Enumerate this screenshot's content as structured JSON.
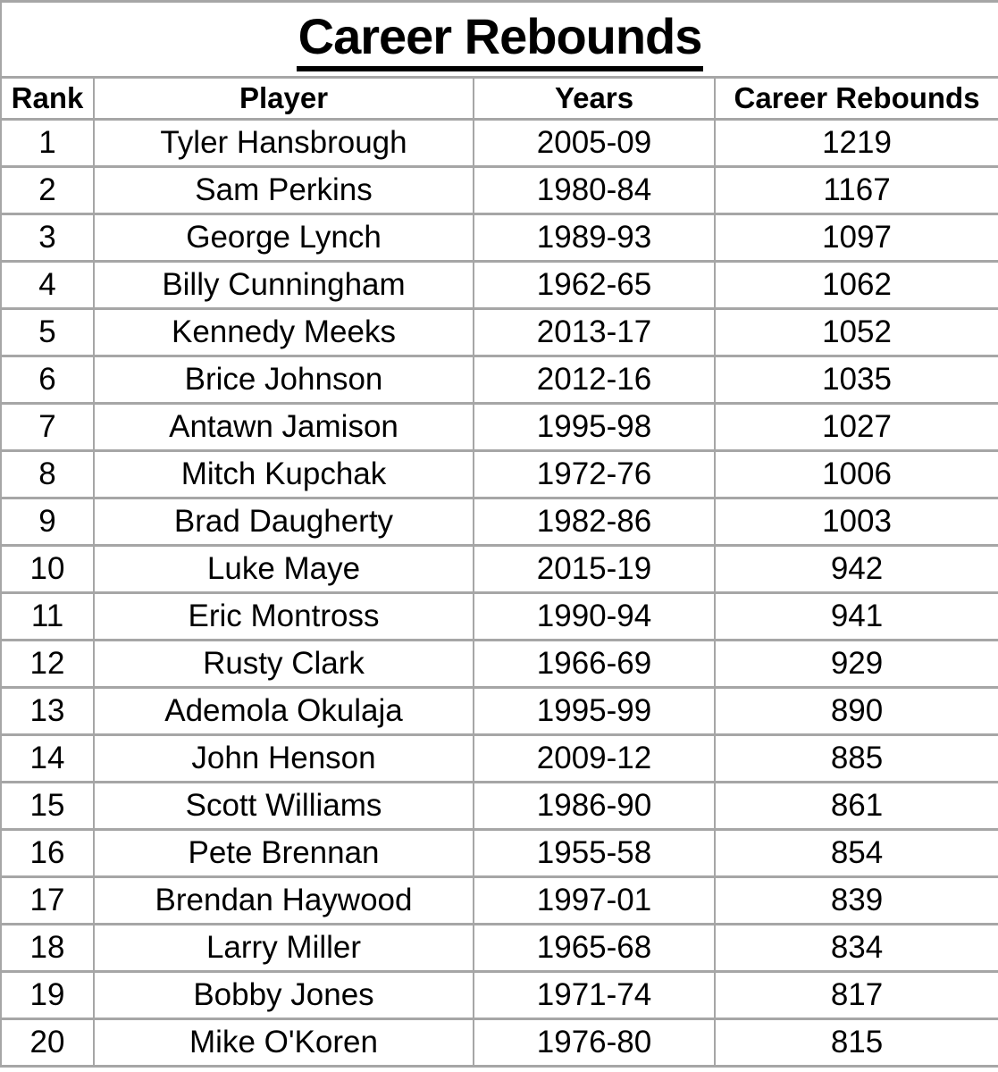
{
  "colors": {
    "background": "#ffffff",
    "text": "#000000",
    "grid_border": "#a6a6a6",
    "title_underline": "#000000"
  },
  "chart_data": {
    "type": "table",
    "title": "Career Rebounds",
    "columns": [
      "Rank",
      "Player",
      "Years",
      "Career Rebounds"
    ],
    "rows": [
      [
        1,
        "Tyler Hansbrough",
        "2005-09",
        1219
      ],
      [
        2,
        "Sam Perkins",
        "1980-84",
        1167
      ],
      [
        3,
        "George Lynch",
        "1989-93",
        1097
      ],
      [
        4,
        "Billy Cunningham",
        "1962-65",
        1062
      ],
      [
        5,
        "Kennedy Meeks",
        "2013-17",
        1052
      ],
      [
        6,
        "Brice Johnson",
        "2012-16",
        1035
      ],
      [
        7,
        "Antawn Jamison",
        "1995-98",
        1027
      ],
      [
        8,
        "Mitch Kupchak",
        "1972-76",
        1006
      ],
      [
        9,
        "Brad Daugherty",
        "1982-86",
        1003
      ],
      [
        10,
        "Luke Maye",
        "2015-19",
        942
      ],
      [
        11,
        "Eric Montross",
        "1990-94",
        941
      ],
      [
        12,
        "Rusty Clark",
        "1966-69",
        929
      ],
      [
        13,
        "Ademola Okulaja",
        "1995-99",
        890
      ],
      [
        14,
        "John Henson",
        "2009-12",
        885
      ],
      [
        15,
        "Scott Williams",
        "1986-90",
        861
      ],
      [
        16,
        "Pete Brennan",
        "1955-58",
        854
      ],
      [
        17,
        "Brendan Haywood",
        "1997-01",
        839
      ],
      [
        18,
        "Larry Miller",
        "1965-68",
        834
      ],
      [
        19,
        "Bobby Jones",
        "1971-74",
        817
      ],
      [
        20,
        "Mike O'Koren",
        "1976-80",
        815
      ]
    ],
    "layout": {
      "grid": true,
      "title_position": "top-center",
      "title_underlined": true
    }
  }
}
